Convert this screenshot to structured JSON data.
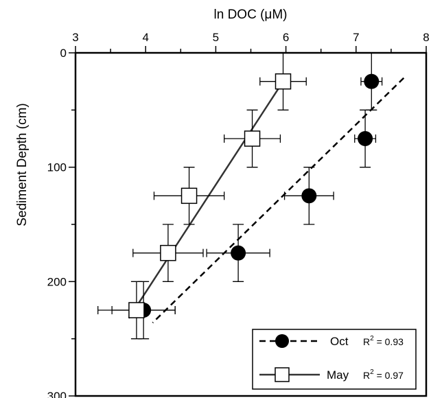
{
  "chart_data": {
    "type": "scatter",
    "xlabel": "ln DOC (μM)",
    "ylabel": "Sediment Depth (cm)",
    "xlim": [
      3,
      8
    ],
    "ylim": [
      0,
      300
    ],
    "y_inverted": true,
    "x_axis_position": "top",
    "x_ticks": [
      "3",
      "4",
      "5",
      "6",
      "7",
      "8"
    ],
    "y_ticks": [
      "0",
      "100",
      "200",
      "300"
    ],
    "grid": false,
    "legend_position": "bottom-right",
    "series": [
      {
        "name": "Oct",
        "marker": "filled-circle",
        "r2_label": "R",
        "r2_exp": "2",
        "r2_value": " = 0.93",
        "points": [
          {
            "x": 7.22,
            "y": 25,
            "xerr": 0.15,
            "yerr": 25
          },
          {
            "x": 7.13,
            "y": 75,
            "xerr": 0.15,
            "yerr": 25
          },
          {
            "x": 6.33,
            "y": 125,
            "xerr": 0.35,
            "yerr": 25
          },
          {
            "x": 5.32,
            "y": 175,
            "xerr": 0.45,
            "yerr": 25
          },
          {
            "x": 3.97,
            "y": 225,
            "xerr": 0.45,
            "yerr": 25
          }
        ],
        "fit": {
          "x1": 7.68,
          "y1": 22,
          "x2": 4.1,
          "y2": 236,
          "style": "dashed"
        }
      },
      {
        "name": "May",
        "marker": "open-square",
        "r2_label": "R",
        "r2_exp": "2",
        "r2_value": " = 0.97",
        "points": [
          {
            "x": 5.96,
            "y": 25,
            "xerr": 0.33,
            "yerr": 25
          },
          {
            "x": 5.52,
            "y": 75,
            "xerr": 0.4,
            "yerr": 25
          },
          {
            "x": 4.62,
            "y": 125,
            "xerr": 0.5,
            "yerr": 25
          },
          {
            "x": 4.32,
            "y": 175,
            "xerr": 0.5,
            "yerr": 25
          },
          {
            "x": 3.87,
            "y": 225,
            "xerr": 0.55,
            "yerr": 25
          }
        ],
        "fit": {
          "x1": 5.96,
          "y1": 25,
          "x2": 3.76,
          "y2": 232,
          "style": "solid"
        }
      }
    ]
  }
}
